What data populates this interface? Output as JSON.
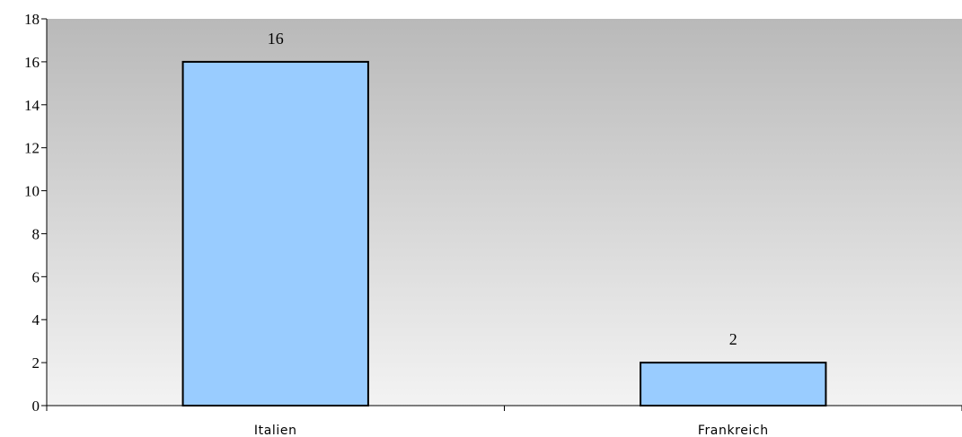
{
  "chart_data": {
    "type": "bar",
    "categories": [
      "Italien",
      "Frankreich"
    ],
    "values": [
      16,
      2
    ],
    "data_labels": [
      "16",
      "2"
    ],
    "title": "",
    "xlabel": "",
    "ylabel": "",
    "ylim": [
      0,
      18
    ],
    "yticks": [
      "0",
      "2",
      "4",
      "6",
      "8",
      "10",
      "12",
      "14",
      "16",
      "18"
    ],
    "grid": false,
    "legend": "none",
    "bar_color": "#99ccff",
    "bar_edge_color": "#000000",
    "plot_background": "gradient #bbbbbb to #f2f2f2"
  }
}
